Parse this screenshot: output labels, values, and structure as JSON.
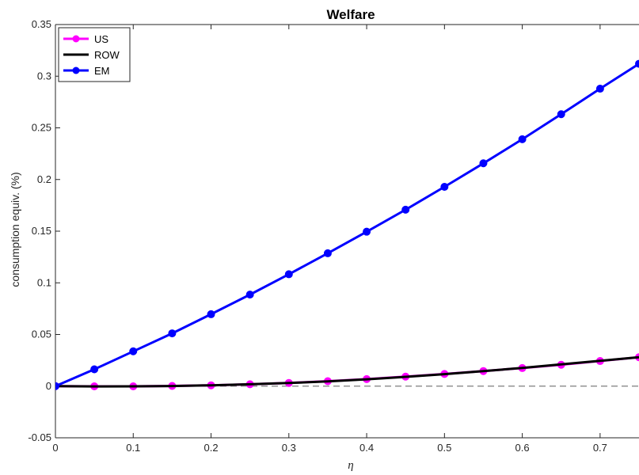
{
  "chart_data": {
    "type": "line",
    "title": "Welfare",
    "xlabel": "η",
    "ylabel": "consumption equiv. (%)",
    "xlim": [
      0,
      0.75
    ],
    "ylim": [
      -0.05,
      0.35
    ],
    "x_ticks": [
      "0",
      "0.1",
      "0.2",
      "0.3",
      "0.4",
      "0.5",
      "0.6",
      "0.7"
    ],
    "y_ticks": [
      "-0.05",
      "0",
      "0.05",
      "0.1",
      "0.15",
      "0.2",
      "0.25",
      "0.3",
      "0.35"
    ],
    "x": [
      0,
      0.05,
      0.1,
      0.15,
      0.2,
      0.25,
      0.3,
      0.35,
      0.4,
      0.45,
      0.5,
      0.55,
      0.6,
      0.65,
      0.7,
      0.75
    ],
    "grid": false,
    "legend_position": "top-left",
    "reference_line": {
      "y": 0,
      "style": "dashed",
      "color": "#7f7f7f"
    },
    "series": [
      {
        "name": "US",
        "color": "#ff00ff",
        "marker": "circle",
        "values": [
          0,
          -0.0002,
          -0.0002,
          0.0002,
          0.0008,
          0.0018,
          0.0031,
          0.0048,
          0.0068,
          0.0092,
          0.0118,
          0.0146,
          0.0175,
          0.0207,
          0.0243,
          0.028
        ]
      },
      {
        "name": "ROW",
        "color": "#000000",
        "marker": "none",
        "values": [
          0,
          -0.0003,
          -0.0002,
          0.0001,
          0.0008,
          0.0018,
          0.003,
          0.0046,
          0.0066,
          0.009,
          0.0116,
          0.0145,
          0.0176,
          0.021,
          0.0245,
          0.028
        ]
      },
      {
        "name": "EM",
        "color": "#0000ff",
        "marker": "circle",
        "values": [
          0,
          0.0163,
          0.0337,
          0.0511,
          0.0696,
          0.0886,
          0.1083,
          0.1286,
          0.1495,
          0.1708,
          0.1929,
          0.2157,
          0.239,
          0.2632,
          0.2879,
          0.312
        ]
      }
    ]
  }
}
